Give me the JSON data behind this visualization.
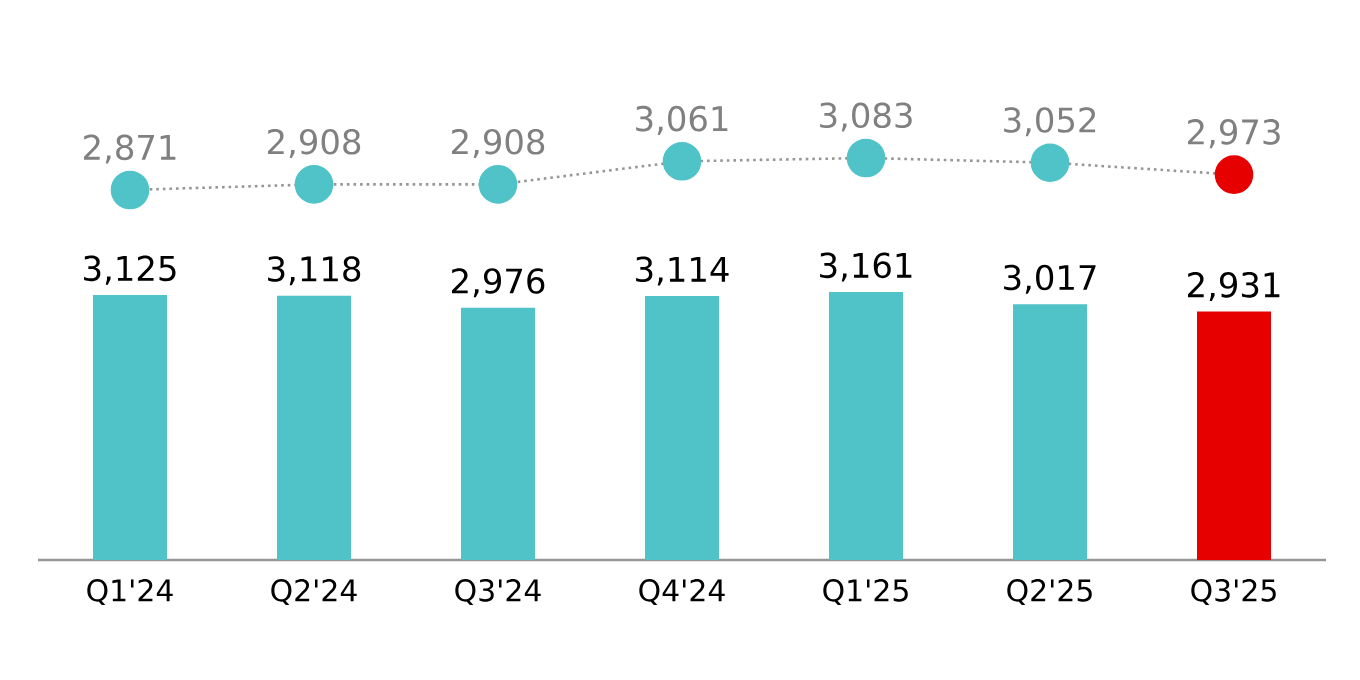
{
  "chart_data": [
    {
      "type": "bar",
      "categories": [
        "Q1'24",
        "Q2'24",
        "Q3'24",
        "Q4'24",
        "Q1'25",
        "Q2'25",
        "Q3'25"
      ],
      "colors": [
        "#4fc3c8",
        "#4fc3c8",
        "#4fc3c8",
        "#4fc3c8",
        "#4fc3c8",
        "#4fc3c8",
        "#e60000"
      ],
      "values": [
        3125,
        3118,
        2976,
        3114,
        3161,
        3017,
        2931
      ],
      "value_labels": [
        "3,125",
        "3,118",
        "2,976",
        "3,114",
        "3,161",
        "3,017",
        "2,931"
      ],
      "tick_labels": "x"
    },
    {
      "type": "line",
      "categories": [
        null,
        null,
        null,
        null,
        null,
        null,
        null
      ],
      "colors": [
        "#4fc3c8",
        "#4fc3c8",
        "#4fc3c8",
        "#4fc3c8",
        "#4fc3c8",
        "#4fc3c8",
        "#e60000"
      ],
      "marker": "circle",
      "line_style": "dotted",
      "values": [
        2871,
        2908,
        2908,
        3061,
        3083,
        3052,
        2973
      ],
      "value_labels": [
        "2,871",
        "2,908",
        "2,908",
        "3,061",
        "3,083",
        "3,052",
        "2,973"
      ],
      "tick_labels": false
    }
  ]
}
